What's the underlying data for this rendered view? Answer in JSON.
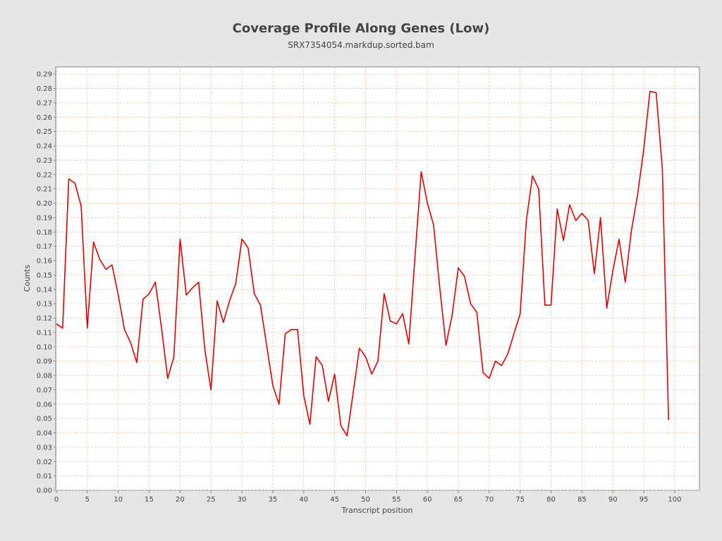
{
  "chart_data": {
    "type": "line",
    "title": "Coverage Profile Along Genes (Low)",
    "subtitle": "SRX7354054.markdup.sorted.bam",
    "xlabel": "Transcript position",
    "ylabel": "Counts",
    "xlim": [
      0,
      104
    ],
    "ylim": [
      0,
      0.295
    ],
    "x_ticks": [
      0,
      5,
      10,
      15,
      20,
      25,
      30,
      35,
      40,
      45,
      50,
      55,
      60,
      65,
      70,
      75,
      80,
      85,
      90,
      95,
      100
    ],
    "y_ticks": [
      "0.00",
      "0.01",
      "0.02",
      "0.03",
      "0.04",
      "0.05",
      "0.06",
      "0.07",
      "0.08",
      "0.09",
      "0.10",
      "0.11",
      "0.12",
      "0.13",
      "0.14",
      "0.15",
      "0.16",
      "0.17",
      "0.18",
      "0.19",
      "0.20",
      "0.21",
      "0.22",
      "0.23",
      "0.24",
      "0.25",
      "0.26",
      "0.27",
      "0.28",
      "0.29"
    ],
    "grid": true,
    "series": [
      {
        "color": "#e00000",
        "x": [
          0,
          1,
          2,
          3,
          4,
          5,
          6,
          7,
          8,
          9,
          10,
          11,
          12,
          13,
          14,
          15,
          16,
          17,
          18,
          19,
          20,
          21,
          22,
          23,
          24,
          25,
          26,
          27,
          28,
          29,
          30,
          31,
          32,
          33,
          34,
          35,
          36,
          37,
          38,
          39,
          40,
          41,
          42,
          43,
          44,
          45,
          46,
          47,
          48,
          49,
          50,
          51,
          52,
          53,
          54,
          55,
          56,
          57,
          58,
          59,
          60,
          61,
          62,
          63,
          64,
          65,
          66,
          67,
          68,
          69,
          70,
          71,
          72,
          73,
          74,
          75,
          76,
          77,
          78,
          79,
          80,
          81,
          82,
          83,
          84,
          85,
          86,
          87,
          88,
          89,
          90,
          91,
          92,
          93,
          94,
          95,
          96,
          97,
          98,
          99
        ],
        "values": [
          0.116,
          0.113,
          0.217,
          0.214,
          0.198,
          0.113,
          0.173,
          0.161,
          0.154,
          0.157,
          0.136,
          0.112,
          0.103,
          0.089,
          0.133,
          0.137,
          0.145,
          0.113,
          0.078,
          0.093,
          0.175,
          0.136,
          0.141,
          0.145,
          0.098,
          0.07,
          0.132,
          0.117,
          0.132,
          0.144,
          0.175,
          0.169,
          0.137,
          0.129,
          0.101,
          0.073,
          0.06,
          0.109,
          0.112,
          0.112,
          0.066,
          0.046,
          0.093,
          0.087,
          0.062,
          0.081,
          0.045,
          0.038,
          0.068,
          0.099,
          0.093,
          0.081,
          0.09,
          0.137,
          0.118,
          0.116,
          0.123,
          0.102,
          0.163,
          0.222,
          0.2,
          0.185,
          0.141,
          0.101,
          0.122,
          0.155,
          0.149,
          0.13,
          0.124,
          0.082,
          0.078,
          0.09,
          0.087,
          0.095,
          0.109,
          0.123,
          0.188,
          0.219,
          0.21,
          0.129,
          0.129,
          0.196,
          0.174,
          0.199,
          0.188,
          0.193,
          0.188,
          0.151,
          0.19,
          0.127,
          0.153,
          0.175,
          0.145,
          0.181,
          0.206,
          0.238,
          0.278,
          0.277,
          0.224,
          0.049
        ]
      }
    ]
  },
  "colors": {
    "background": "#e6e6e6",
    "plot_background": "#ffffff",
    "gridline": "#f0c8a8",
    "line": "#e00000",
    "text": "#444444"
  }
}
